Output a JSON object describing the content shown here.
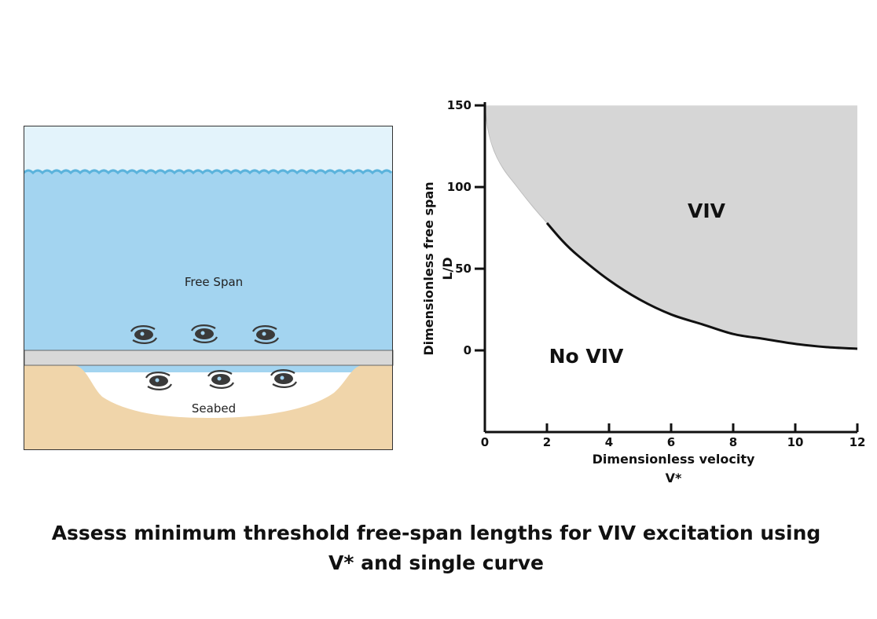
{
  "scene": {
    "free_span_label": "Free Span",
    "seabed_label": "Seabed",
    "colors": {
      "sky": "#e3f3fb",
      "water": "#a3d4f0",
      "wave": "#5bb3dc",
      "pipe": "#d8d8d8",
      "seabed": "#f0d5aa",
      "vortex": "#3a3a3a"
    }
  },
  "chart_data": {
    "type": "area",
    "xlabel": [
      "Dimensionless velocity",
      "V*"
    ],
    "ylabel": [
      "Dimensionless free span",
      "L/D"
    ],
    "xlim": [
      0,
      12
    ],
    "ylim": [
      -50,
      152
    ],
    "xticks": [
      0,
      2,
      4,
      6,
      8,
      10,
      12
    ],
    "yticks": [
      0,
      50,
      100,
      150
    ],
    "curve": {
      "x": [
        2.0,
        2.5,
        3,
        4,
        5,
        6,
        7,
        8,
        9,
        10,
        11,
        12
      ],
      "y": [
        78,
        67,
        58,
        43,
        31,
        22,
        16,
        10,
        7,
        4,
        2,
        1
      ]
    },
    "boundary_faint": {
      "x": [
        0,
        0.1,
        0.3,
        0.6,
        1.0,
        1.5,
        2.0
      ],
      "y": [
        150,
        135,
        122,
        111,
        101,
        89,
        78
      ]
    },
    "regions": {
      "upper": "VIV",
      "lower": "No VIV"
    },
    "colors": {
      "region_fill": "#d6d6d6",
      "curve": "#111111",
      "axis": "#111111"
    }
  },
  "caption": {
    "line1": "Assess minimum threshold free-span lengths for VIV excitation using",
    "line2": "V* and single curve"
  }
}
